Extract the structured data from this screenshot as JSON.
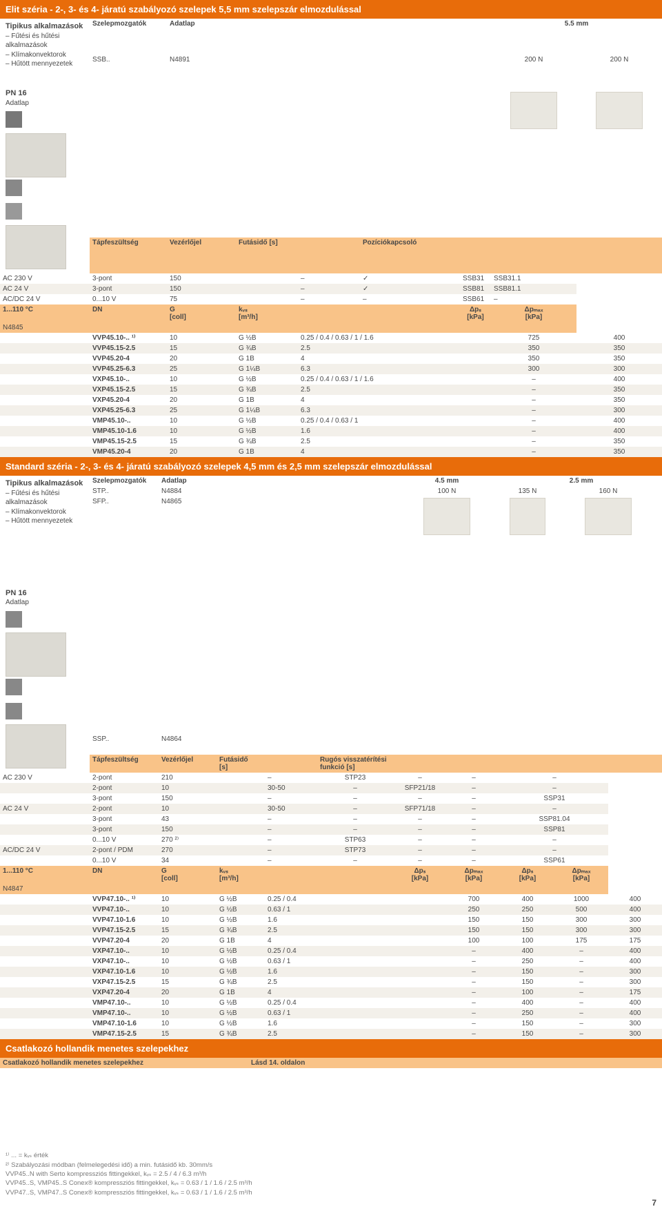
{
  "colors": {
    "primary": "#e86c0a",
    "row_alt": "#f3f0ea",
    "row_orange": "#f9c388",
    "text": "#474747"
  },
  "section1": {
    "title": "Elit széria - 2-, 3- és 4- járatú szabályozó szelepek 5,5 mm szelepszár elmozdulással",
    "apps_header": "Tipikus alkalmazások",
    "apps": "– Fűtési és hűtési\n  alkalmazások\n– Klímakonvektorok\n– Hűtött mennyezetek",
    "pn": "PN 16",
    "adatlap_label": "Adatlap",
    "actuators_label": "Szelepmozgatók",
    "actuator": "SSB..",
    "adatlap_val": "Adatlap",
    "datasheet_no": "N4891",
    "stroke": "5.5 mm",
    "force1": "200 N",
    "force2": "200 N",
    "volt_label": "Tápfeszültség",
    "ctrl_label": "Vezérlőjel",
    "runtime_label": "Futásidő [s]",
    "pos_label": "Pozíciókapcsoló",
    "voltrows": [
      {
        "v": "AC 230 V",
        "c": "3-pont",
        "t": "150",
        "p": "–",
        "chk": "✓",
        "m1": "SSB31",
        "m2": "SSB31.1"
      },
      {
        "v": "AC 24 V",
        "c": "3-pont",
        "t": "150",
        "p": "–",
        "chk": "✓",
        "m1": "SSB81",
        "m2": "SSB81.1"
      },
      {
        "v": "AC/DC 24 V",
        "c": "0...10 V",
        "t": "75",
        "p": "–",
        "chk": "–",
        "m1": "SSB61",
        "m2": "–"
      }
    ],
    "tbl_hdr": {
      "temp": "1...110 °C",
      "ds": "N4845",
      "dn": "DN",
      "g": "G\n[coll]",
      "kvs": "kᵥₛ\n[m³/h]",
      "dps": "Δpₛ\n[kPa]",
      "dpmax": "Δpₘₐₓ\n[kPa]"
    },
    "rows": [
      {
        "name": "VVP45.10-.. ¹⁾",
        "dn": "10",
        "g": "G ½B",
        "kvs": "0.25 / 0.4 / 0.63 / 1 / 1.6",
        "dps": "725",
        "dpmax": "400"
      },
      {
        "name": "VVP45.15-2.5",
        "dn": "15",
        "g": "G ¾B",
        "kvs": "2.5",
        "dps": "350",
        "dpmax": "350"
      },
      {
        "name": "VVP45.20-4",
        "dn": "20",
        "g": "G 1B",
        "kvs": "4",
        "dps": "350",
        "dpmax": "350"
      },
      {
        "name": "VVP45.25-6.3",
        "dn": "25",
        "g": "G 1¼B",
        "kvs": "6.3",
        "dps": "300",
        "dpmax": "300"
      },
      {
        "name": "VXP45.10-..",
        "dn": "10",
        "g": "G ½B",
        "kvs": "0.25 / 0.4 / 0.63 / 1 / 1.6",
        "dps": "–",
        "dpmax": "400"
      },
      {
        "name": "VXP45.15-2.5",
        "dn": "15",
        "g": "G ¾B",
        "kvs": "2.5",
        "dps": "–",
        "dpmax": "350"
      },
      {
        "name": "VXP45.20-4",
        "dn": "20",
        "g": "G 1B",
        "kvs": "4",
        "dps": "–",
        "dpmax": "350"
      },
      {
        "name": "VXP45.25-6.3",
        "dn": "25",
        "g": "G 1¼B",
        "kvs": "6.3",
        "dps": "–",
        "dpmax": "300"
      },
      {
        "name": "VMP45.10-..",
        "dn": "10",
        "g": "G ½B",
        "kvs": "0.25 / 0.4 / 0.63 / 1",
        "dps": "–",
        "dpmax": "400"
      },
      {
        "name": "VMP45.10-1.6",
        "dn": "10",
        "g": "G ½B",
        "kvs": "1.6",
        "dps": "–",
        "dpmax": "400"
      },
      {
        "name": "VMP45.15-2.5",
        "dn": "15",
        "g": "G ¾B",
        "kvs": "2.5",
        "dps": "–",
        "dpmax": "350"
      },
      {
        "name": "VMP45.20-4",
        "dn": "20",
        "g": "G 1B",
        "kvs": "4",
        "dps": "–",
        "dpmax": "350"
      }
    ]
  },
  "section2": {
    "title": "Standard széria - 2-, 3- és 4- járatú szabályozó szelepek 4,5 mm és 2,5 mm szelepszár elmozdulással",
    "apps_header": "Tipikus alkalmazások",
    "apps": "– Fűtési és hűtési\n  alkalmazások\n– Klímakonvektorok\n– Hűtött mennyezetek",
    "pn": "PN 16",
    "adatlap_label": "Adatlap",
    "actuators_label": "Szelepmozgatók",
    "adatlap_val": "Adatlap",
    "act_list": [
      {
        "a": "STP..",
        "d": "N4884"
      },
      {
        "a": "SFP..",
        "d": "N4865"
      },
      {
        "a": "SSP..",
        "d": "N4864"
      }
    ],
    "stroke1": "4.5 mm",
    "stroke2": "2.5 mm",
    "force_a": "100 N",
    "force_b": "135 N",
    "force_c": "160 N",
    "volt_label": "Tápfeszültség",
    "ctrl_label": "Vezérlőjel",
    "runtime_label": "Futásidő\n[s]",
    "spring_label": "Rugós visszatérítési\nfunkció [s]",
    "voltrows": [
      {
        "v": "AC 230 V",
        "c": "2-pont",
        "t": "210",
        "s": "–",
        "m1": "STP23",
        "m2": "–",
        "m3": "–",
        "m4": "–"
      },
      {
        "v": "",
        "c": "2-pont",
        "t": "10",
        "s": "30-50",
        "m1": "–",
        "m2": "SFP21/18",
        "m3": "–",
        "m4": "–"
      },
      {
        "v": "",
        "c": "3-pont",
        "t": "150",
        "s": "–",
        "m1": "–",
        "m2": "–",
        "m3": "–",
        "m4": "SSP31"
      },
      {
        "v": "AC 24 V",
        "c": "2-pont",
        "t": "10",
        "s": "30-50",
        "m1": "–",
        "m2": "SFP71/18",
        "m3": "–",
        "m4": "–"
      },
      {
        "v": "",
        "c": "3-pont",
        "t": "43",
        "s": "–",
        "m1": "–",
        "m2": "–",
        "m3": "–",
        "m4": "SSP81.04"
      },
      {
        "v": "",
        "c": "3-pont",
        "t": "150",
        "s": "–",
        "m1": "–",
        "m2": "–",
        "m3": "–",
        "m4": "SSP81"
      },
      {
        "v": "",
        "c": "0...10 V",
        "t": "270 ²⁾",
        "s": "–",
        "m1": "STP63",
        "m2": "–",
        "m3": "–",
        "m4": "–"
      },
      {
        "v": "AC/DC 24 V",
        "c": "2-pont / PDM",
        "t": "270",
        "s": "–",
        "m1": "STP73",
        "m2": "–",
        "m3": "–",
        "m4": "–"
      },
      {
        "v": "",
        "c": "0...10 V",
        "t": "34",
        "s": "–",
        "m1": "–",
        "m2": "–",
        "m3": "–",
        "m4": "SSP61"
      }
    ],
    "tbl_hdr": {
      "temp": "1...110 °C",
      "ds": "N4847",
      "dn": "DN",
      "g": "G\n[coll]",
      "kvs": "kᵥₛ\n[m³/h]",
      "dps": "Δpₛ\n[kPa]",
      "dpmax": "Δpₘₐₓ\n[kPa]"
    },
    "rows": [
      {
        "name": "VVP47.10-.. ¹⁾",
        "dn": "10",
        "g": "G ½B",
        "kvs": "0.25 / 0.4",
        "a": "700",
        "b": "400",
        "c": "1000",
        "d": "400"
      },
      {
        "name": "VVP47.10-..",
        "dn": "10",
        "g": "G ½B",
        "kvs": "0.63 / 1",
        "a": "250",
        "b": "250",
        "c": "500",
        "d": "400"
      },
      {
        "name": "VVP47.10-1.6",
        "dn": "10",
        "g": "G ½B",
        "kvs": "1.6",
        "a": "150",
        "b": "150",
        "c": "300",
        "d": "300"
      },
      {
        "name": "VVP47.15-2.5",
        "dn": "15",
        "g": "G ¾B",
        "kvs": "2.5",
        "a": "150",
        "b": "150",
        "c": "300",
        "d": "300"
      },
      {
        "name": "VVP47.20-4",
        "dn": "20",
        "g": "G 1B",
        "kvs": "4",
        "a": "100",
        "b": "100",
        "c": "175",
        "d": "175"
      },
      {
        "name": "VXP47.10-..",
        "dn": "10",
        "g": "G ½B",
        "kvs": "0.25 / 0.4",
        "a": "–",
        "b": "400",
        "c": "–",
        "d": "400"
      },
      {
        "name": "VXP47.10-..",
        "dn": "10",
        "g": "G ½B",
        "kvs": "0.63 / 1",
        "a": "–",
        "b": "250",
        "c": "–",
        "d": "400"
      },
      {
        "name": "VXP47.10-1.6",
        "dn": "10",
        "g": "G ½B",
        "kvs": "1.6",
        "a": "–",
        "b": "150",
        "c": "–",
        "d": "300"
      },
      {
        "name": "VXP47.15-2.5",
        "dn": "15",
        "g": "G ¾B",
        "kvs": "2.5",
        "a": "–",
        "b": "150",
        "c": "–",
        "d": "300"
      },
      {
        "name": "VXP47.20-4",
        "dn": "20",
        "g": "G 1B",
        "kvs": "4",
        "a": "–",
        "b": "100",
        "c": "–",
        "d": "175"
      },
      {
        "name": "VMP47.10-..",
        "dn": "10",
        "g": "G ½B",
        "kvs": "0.25 / 0.4",
        "a": "–",
        "b": "400",
        "c": "–",
        "d": "400"
      },
      {
        "name": "VMP47.10-..",
        "dn": "10",
        "g": "G ½B",
        "kvs": "0.63 / 1",
        "a": "–",
        "b": "250",
        "c": "–",
        "d": "400"
      },
      {
        "name": "VMP47.10-1.6",
        "dn": "10",
        "g": "G ½B",
        "kvs": "1.6",
        "a": "–",
        "b": "150",
        "c": "–",
        "d": "300"
      },
      {
        "name": "VMP47.15-2.5",
        "dn": "15",
        "g": "G ¾B",
        "kvs": "2.5",
        "a": "–",
        "b": "150",
        "c": "–",
        "d": "300"
      }
    ]
  },
  "section3": {
    "title": "Csatlakozó hollandik menetes szelepekhez",
    "sub": "Csatlakozó hollandik menetes szelepekhez",
    "ref": "Lásd 14. oldalon"
  },
  "footer": {
    "l1": "¹⁾ ... = kᵥₛ érték",
    "l2": "²⁾ Szabályozási módban (felmelegedési idő) a min. futásidő kb. 30mm/s",
    "l3": "VVP45..N with Serto kompressziós fittingekkel, kᵥₛ = 2.5 / 4 / 6.3 m³/h",
    "l4": "VVP45..S, VMP45..S Conex® kompressziós fittingekkel, kᵥₛ = 0.63 / 1 / 1.6 / 2.5 m³/h",
    "l5": "VVP47..S, VMP47..S Conex® kompressziós fittingekkel, kᵥₛ = 0.63 / 1 / 1.6 / 2.5 m³/h",
    "page": "7"
  }
}
